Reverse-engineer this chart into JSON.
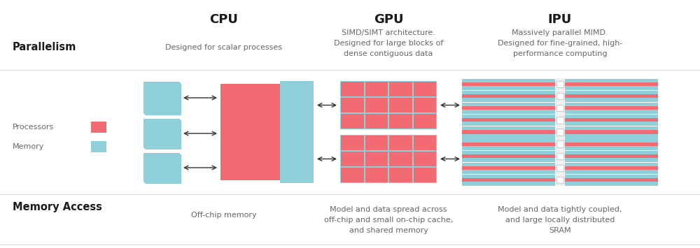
{
  "bg_color": "#ffffff",
  "cyan": "#8ECFDA",
  "red": "#F26B72",
  "light_gray": "#dddddd",
  "white": "#ffffff",
  "gray_mid": "#eeeeee",
  "text_dark": "#1a1a1a",
  "text_mid": "#666666",
  "cpu_title": "CPU",
  "gpu_title": "GPU",
  "ipu_title": "IPU",
  "parallelism_label": "Parallelism",
  "memory_access_label": "Memory Access",
  "cpu_parallelism_text": "Designed for scalar processes",
  "gpu_parallelism_text": "SIMD/SIMT architecture.\nDesigned for large blocks of\ndense contiguous data",
  "ipu_parallelism_text": "Massively parallel MIMD.\nDesigned for fine-grained, high-\nperformance computing",
  "cpu_memory_text": "Off-chip memory",
  "gpu_memory_text": "Model and data spread across\noff-chip and small on-chip cache,\nand shared memory",
  "ipu_memory_text": "Model and data tightly coupled,\nand large locally distributed\nSRAM",
  "processors_label": "Processors",
  "memory_label": "Memory"
}
